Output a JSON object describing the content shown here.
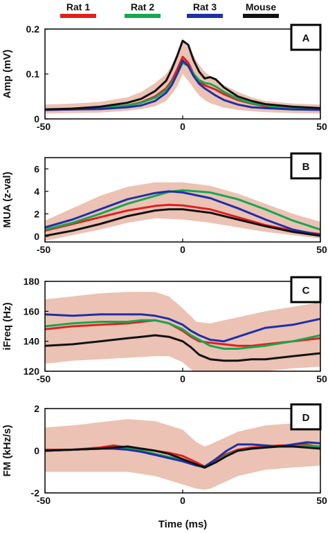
{
  "legend": [
    {
      "label": "Rat 1",
      "color": "#e02020"
    },
    {
      "label": "Rat 2",
      "color": "#14a850"
    },
    {
      "label": "Rat 3",
      "color": "#1f2fa8"
    },
    {
      "label": "Mouse",
      "color": "#111111"
    }
  ],
  "band_color": "#e7b7a6",
  "chart_data": [
    {
      "type": "line",
      "panel_label": "A",
      "xlabel": "",
      "ylabel": "Amp (mV)",
      "xlim": [
        -50,
        50
      ],
      "ylim": [
        0,
        0.2
      ],
      "xticks": [
        "-50",
        "0",
        "50"
      ],
      "yticks": [
        {
          "v": 0,
          "t": "0"
        },
        {
          "v": 0.1,
          "t": "0.1"
        },
        {
          "v": 0.2,
          "t": "0.2"
        }
      ],
      "band": {
        "x": [
          -50,
          -40,
          -30,
          -20,
          -15,
          -10,
          -6,
          -4,
          -2,
          0,
          2,
          4,
          6,
          8,
          10,
          15,
          20,
          25,
          30,
          40,
          50
        ],
        "lower": [
          0.012,
          0.013,
          0.014,
          0.018,
          0.022,
          0.028,
          0.04,
          0.055,
          0.072,
          0.1,
          0.085,
          0.068,
          0.052,
          0.042,
          0.035,
          0.025,
          0.02,
          0.017,
          0.015,
          0.013,
          0.012
        ],
        "upper": [
          0.032,
          0.034,
          0.038,
          0.048,
          0.06,
          0.08,
          0.1,
          0.12,
          0.145,
          0.172,
          0.16,
          0.14,
          0.12,
          0.105,
          0.095,
          0.075,
          0.06,
          0.048,
          0.04,
          0.034,
          0.032
        ]
      },
      "series": [
        {
          "name": "Rat 1",
          "x": [
            -50,
            -40,
            -30,
            -20,
            -15,
            -10,
            -6,
            -4,
            -2,
            0,
            2,
            4,
            6,
            8,
            10,
            12,
            15,
            20,
            25,
            30,
            40,
            50
          ],
          "y": [
            0.02,
            0.021,
            0.023,
            0.03,
            0.037,
            0.05,
            0.068,
            0.085,
            0.11,
            0.138,
            0.125,
            0.1,
            0.082,
            0.075,
            0.07,
            0.065,
            0.055,
            0.042,
            0.034,
            0.028,
            0.023,
            0.021
          ]
        },
        {
          "name": "Rat 2",
          "x": [
            -50,
            -40,
            -30,
            -20,
            -15,
            -10,
            -6,
            -4,
            -2,
            0,
            2,
            4,
            6,
            8,
            10,
            12,
            15,
            20,
            25,
            30,
            40,
            50
          ],
          "y": [
            0.021,
            0.022,
            0.024,
            0.03,
            0.036,
            0.047,
            0.064,
            0.08,
            0.1,
            0.125,
            0.118,
            0.1,
            0.086,
            0.08,
            0.078,
            0.072,
            0.06,
            0.045,
            0.035,
            0.03,
            0.024,
            0.022
          ]
        },
        {
          "name": "Rat 3",
          "x": [
            -50,
            -40,
            -30,
            -20,
            -15,
            -10,
            -6,
            -4,
            -2,
            0,
            2,
            4,
            6,
            8,
            10,
            12,
            15,
            20,
            25,
            30,
            40,
            50
          ],
          "y": [
            0.02,
            0.021,
            0.022,
            0.026,
            0.03,
            0.04,
            0.058,
            0.075,
            0.1,
            0.13,
            0.118,
            0.095,
            0.078,
            0.068,
            0.06,
            0.052,
            0.042,
            0.032,
            0.026,
            0.024,
            0.021,
            0.02
          ]
        },
        {
          "name": "Mouse",
          "x": [
            -50,
            -40,
            -30,
            -20,
            -15,
            -10,
            -6,
            -4,
            -2,
            0,
            2,
            4,
            6,
            8,
            10,
            12,
            15,
            20,
            25,
            30,
            40,
            50
          ],
          "y": [
            0.021,
            0.023,
            0.027,
            0.036,
            0.045,
            0.062,
            0.085,
            0.11,
            0.14,
            0.174,
            0.165,
            0.13,
            0.105,
            0.09,
            0.093,
            0.088,
            0.07,
            0.05,
            0.04,
            0.033,
            0.027,
            0.024
          ]
        }
      ]
    },
    {
      "type": "line",
      "panel_label": "B",
      "xlabel": "",
      "ylabel": "MUA (z-val)",
      "xlim": [
        -50,
        50
      ],
      "ylim": [
        -0.5,
        7
      ],
      "xticks": [
        "-50",
        "0",
        "50"
      ],
      "yticks": [
        {
          "v": 0,
          "t": "0"
        },
        {
          "v": 2,
          "t": "2"
        },
        {
          "v": 4,
          "t": "4"
        },
        {
          "v": 6,
          "t": "6"
        }
      ],
      "band": {
        "x": [
          -50,
          -40,
          -30,
          -20,
          -10,
          0,
          10,
          20,
          30,
          40,
          50
        ],
        "lower": [
          -0.4,
          0.1,
          0.6,
          1.2,
          1.6,
          1.5,
          1.2,
          0.8,
          0.4,
          0.1,
          -0.2
        ],
        "upper": [
          1.4,
          2.5,
          3.6,
          4.4,
          4.8,
          4.8,
          4.5,
          3.8,
          2.9,
          2.0,
          1.3
        ]
      },
      "series": [
        {
          "name": "Rat 1",
          "x": [
            -50,
            -40,
            -30,
            -20,
            -10,
            -5,
            0,
            10,
            20,
            30,
            40,
            50
          ],
          "y": [
            0.5,
            1.1,
            1.7,
            2.3,
            2.7,
            2.8,
            2.75,
            2.4,
            1.7,
            1.0,
            0.5,
            0.2
          ]
        },
        {
          "name": "Rat 2",
          "x": [
            -50,
            -40,
            -30,
            -20,
            -10,
            -5,
            0,
            10,
            20,
            30,
            40,
            50
          ],
          "y": [
            0.6,
            1.2,
            2.0,
            2.9,
            3.6,
            3.95,
            4.1,
            3.9,
            3.3,
            2.4,
            1.4,
            0.6
          ]
        },
        {
          "name": "Rat 3",
          "x": [
            -50,
            -40,
            -30,
            -20,
            -10,
            -5,
            0,
            10,
            20,
            30,
            40,
            50
          ],
          "y": [
            0.8,
            1.5,
            2.4,
            3.3,
            3.85,
            4.0,
            3.9,
            3.4,
            2.5,
            1.5,
            0.6,
            0.1
          ]
        },
        {
          "name": "Mouse",
          "x": [
            -50,
            -40,
            -30,
            -20,
            -10,
            -5,
            0,
            10,
            20,
            30,
            40,
            50
          ],
          "y": [
            0.05,
            0.5,
            1.1,
            1.8,
            2.3,
            2.4,
            2.4,
            2.1,
            1.5,
            0.9,
            0.4,
            0.05
          ]
        }
      ]
    },
    {
      "type": "line",
      "panel_label": "C",
      "xlabel": "",
      "ylabel": "iFreq (Hz)",
      "xlim": [
        -50,
        50
      ],
      "ylim": [
        120,
        180
      ],
      "xticks": [
        "-50",
        "0",
        "50"
      ],
      "yticks": [
        {
          "v": 120,
          "t": "120"
        },
        {
          "v": 140,
          "t": "140"
        },
        {
          "v": 160,
          "t": "160"
        },
        {
          "v": 180,
          "t": "180"
        }
      ],
      "band": {
        "x": [
          -50,
          -40,
          -30,
          -20,
          -10,
          -5,
          0,
          5,
          10,
          15,
          20,
          30,
          40,
          50
        ],
        "lower": [
          125,
          127,
          128,
          129,
          130,
          130,
          126,
          118,
          117,
          118,
          119,
          120,
          122,
          123
        ],
        "upper": [
          168,
          170,
          172,
          173,
          173,
          170,
          162,
          153,
          152,
          154,
          156,
          160,
          163,
          166
        ]
      },
      "series": [
        {
          "name": "Rat 1",
          "x": [
            -50,
            -40,
            -30,
            -20,
            -15,
            -10,
            -5,
            0,
            3,
            6,
            10,
            15,
            20,
            25,
            30,
            40,
            50
          ],
          "y": [
            148,
            150,
            151,
            152,
            153,
            154,
            152,
            147,
            143,
            140,
            139,
            138,
            137,
            137,
            138,
            140,
            142
          ]
        },
        {
          "name": "Rat 2",
          "x": [
            -50,
            -40,
            -30,
            -20,
            -15,
            -10,
            -5,
            0,
            3,
            6,
            10,
            15,
            20,
            25,
            30,
            40,
            50
          ],
          "y": [
            150,
            152,
            153,
            153,
            154,
            154,
            152,
            148,
            144,
            141,
            137,
            135,
            135,
            136,
            137,
            140,
            144
          ]
        },
        {
          "name": "Rat 3",
          "x": [
            -50,
            -40,
            -30,
            -20,
            -15,
            -10,
            -5,
            0,
            3,
            6,
            10,
            15,
            20,
            25,
            30,
            40,
            50
          ],
          "y": [
            158,
            157,
            158,
            158,
            158,
            157,
            155,
            151,
            147,
            144,
            141,
            140,
            143,
            146,
            149,
            151,
            155
          ]
        },
        {
          "name": "Mouse",
          "x": [
            -50,
            -40,
            -30,
            -20,
            -15,
            -10,
            -5,
            0,
            3,
            6,
            10,
            15,
            20,
            25,
            30,
            40,
            50
          ],
          "y": [
            137,
            138,
            140,
            142,
            143,
            144,
            143,
            140,
            136,
            131,
            128,
            127,
            127,
            128,
            128,
            130,
            132
          ]
        }
      ]
    },
    {
      "type": "line",
      "panel_label": "D",
      "xlabel": "Time (ms)",
      "ylabel": "FM (kHz/s)",
      "xlim": [
        -50,
        50
      ],
      "ylim": [
        -2,
        2
      ],
      "xticks": [
        "-50",
        "0",
        "50"
      ],
      "yticks": [
        {
          "v": -2,
          "t": "-2"
        },
        {
          "v": 0,
          "t": "0"
        },
        {
          "v": 2,
          "t": "2"
        }
      ],
      "band": {
        "x": [
          -50,
          -40,
          -30,
          -20,
          -10,
          0,
          5,
          8,
          10,
          15,
          20,
          30,
          40,
          50
        ],
        "lower": [
          -1.0,
          -1.0,
          -1.0,
          -1.0,
          -1.2,
          -1.6,
          -1.8,
          -1.85,
          -1.8,
          -1.5,
          -1.2,
          -0.9,
          -0.8,
          -0.7
        ],
        "upper": [
          1.1,
          1.2,
          1.35,
          1.5,
          1.4,
          1.0,
          0.4,
          0.2,
          0.3,
          0.6,
          0.9,
          1.2,
          1.3,
          1.4
        ]
      },
      "series": [
        {
          "name": "Rat 1",
          "x": [
            -50,
            -40,
            -30,
            -25,
            -20,
            -15,
            -10,
            -5,
            0,
            5,
            8,
            12,
            16,
            20,
            25,
            30,
            35,
            40,
            45,
            50
          ],
          "y": [
            0.05,
            0.05,
            0.15,
            0.25,
            0.15,
            0.1,
            0.0,
            -0.1,
            -0.25,
            -0.55,
            -0.75,
            -0.45,
            -0.15,
            0.05,
            0.15,
            0.2,
            0.25,
            0.25,
            0.3,
            0.15
          ]
        },
        {
          "name": "Rat 2",
          "x": [
            -50,
            -40,
            -30,
            -25,
            -20,
            -15,
            -10,
            -5,
            0,
            5,
            8,
            12,
            16,
            20,
            25,
            30,
            35,
            40,
            45,
            50
          ],
          "y": [
            0.0,
            0.05,
            0.1,
            0.15,
            0.1,
            0.0,
            -0.15,
            -0.3,
            -0.45,
            -0.7,
            -0.8,
            -0.55,
            -0.2,
            0.0,
            0.1,
            0.15,
            0.2,
            0.2,
            0.25,
            0.2
          ]
        },
        {
          "name": "Rat 3",
          "x": [
            -50,
            -40,
            -30,
            -25,
            -20,
            -15,
            -10,
            -5,
            0,
            5,
            8,
            12,
            16,
            20,
            25,
            30,
            35,
            40,
            45,
            50
          ],
          "y": [
            0.0,
            0.05,
            0.1,
            0.1,
            0.05,
            -0.05,
            -0.2,
            -0.35,
            -0.5,
            -0.7,
            -0.75,
            -0.4,
            0.0,
            0.3,
            0.3,
            0.25,
            0.2,
            0.3,
            0.4,
            0.35
          ]
        },
        {
          "name": "Mouse",
          "x": [
            -50,
            -40,
            -30,
            -25,
            -20,
            -15,
            -10,
            -5,
            0,
            5,
            8,
            12,
            16,
            20,
            25,
            30,
            35,
            40,
            45,
            50
          ],
          "y": [
            0.0,
            0.05,
            0.1,
            0.15,
            0.2,
            0.1,
            0.0,
            -0.15,
            -0.4,
            -0.65,
            -0.8,
            -0.55,
            -0.25,
            0.0,
            0.1,
            0.15,
            0.2,
            0.2,
            0.15,
            0.1
          ]
        }
      ]
    }
  ]
}
